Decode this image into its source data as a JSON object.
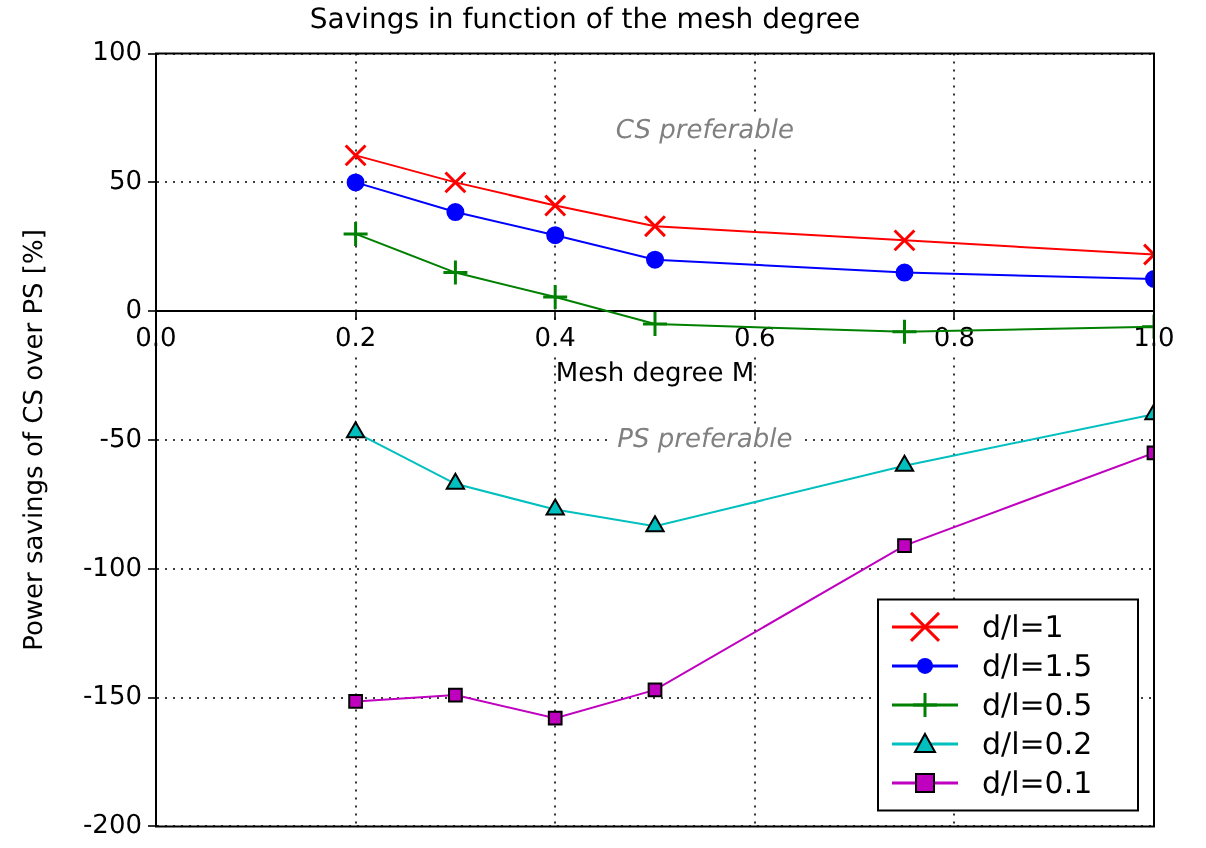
{
  "chart_data": {
    "type": "line",
    "title": "Savings in function of the mesh degree",
    "xlabel": "Mesh degree M",
    "ylabel": "Power savings of CS over PS [%]",
    "x": [
      0.2,
      0.3,
      0.4,
      0.5,
      0.75,
      1.0
    ],
    "series": [
      {
        "name": "d/l=1",
        "color": "#ff0000",
        "marker": "x",
        "values": [
          60.5,
          50,
          41,
          33,
          27.5,
          22
        ]
      },
      {
        "name": "d/l=1.5",
        "color": "#0000ff",
        "marker": "circle",
        "values": [
          50,
          38.5,
          29.5,
          20,
          15,
          12.5
        ]
      },
      {
        "name": "d/l=0.5",
        "color": "#008000",
        "marker": "plus",
        "values": [
          30,
          15,
          5.5,
          -5,
          -8,
          -6
        ]
      },
      {
        "name": "d/l=0.2",
        "color": "#00bfbf",
        "marker": "triangle",
        "values": [
          -47,
          -67,
          -77,
          -83.5,
          -60,
          -40
        ]
      },
      {
        "name": "d/l=0.1",
        "color": "#bf00bf",
        "marker": "square",
        "values": [
          -151.5,
          -149,
          -158,
          -147,
          -91,
          -55
        ]
      }
    ],
    "xlim": [
      0.0,
      1.0
    ],
    "xticks": [
      {
        "value": 0,
        "label": "0.0"
      },
      0.2,
      0.4,
      0.6,
      0.8,
      {
        "value": 1,
        "label": "1.0"
      }
    ],
    "ylim": [
      -200,
      100
    ],
    "yticks": [
      -200,
      -150,
      -100,
      -50,
      0,
      50,
      100
    ],
    "grid": true,
    "legend": "bottom right",
    "annotations": [
      "CS preferable",
      "PS preferable"
    ]
  }
}
